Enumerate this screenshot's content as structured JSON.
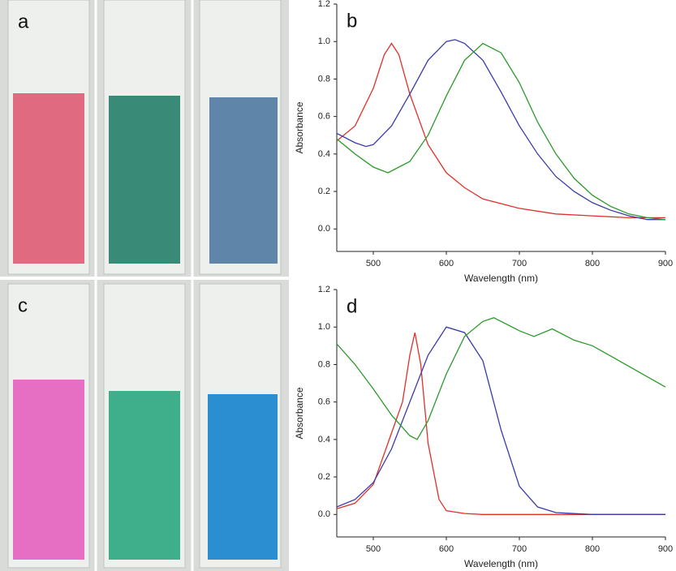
{
  "photo_panels": [
    {
      "label": "a"
    },
    {
      "label": "c"
    }
  ],
  "chart_data": [
    {
      "type": "line",
      "panel_label": "b",
      "xlabel": "Wavelength (nm)",
      "ylabel": "Absorbance",
      "xlim": [
        450,
        900
      ],
      "ylim": [
        -0.12,
        1.2
      ],
      "xticks": [
        500,
        600,
        700,
        800,
        900
      ],
      "yticks": [
        {
          "value": 0,
          "label": "0.0"
        },
        0.2,
        0.4,
        0.6,
        0.8,
        {
          "value": 1,
          "label": "1.0"
        },
        1.2
      ],
      "series": [
        {
          "color": "#e0302a",
          "x": [
            450,
            475,
            500,
            515,
            525,
            535,
            550,
            575,
            600,
            625,
            650,
            700,
            750,
            800,
            850,
            900
          ],
          "values": [
            0.47,
            0.55,
            0.75,
            0.93,
            0.99,
            0.93,
            0.72,
            0.45,
            0.3,
            0.22,
            0.16,
            0.11,
            0.08,
            0.07,
            0.06,
            0.06
          ]
        },
        {
          "color": "#3a3aa8",
          "x": [
            450,
            475,
            490,
            500,
            525,
            550,
            575,
            600,
            612,
            625,
            650,
            675,
            700,
            725,
            750,
            775,
            800,
            825,
            850,
            875,
            900
          ],
          "values": [
            0.51,
            0.46,
            0.44,
            0.45,
            0.55,
            0.72,
            0.9,
            1.0,
            1.01,
            0.99,
            0.9,
            0.73,
            0.55,
            0.4,
            0.28,
            0.2,
            0.14,
            0.1,
            0.07,
            0.05,
            0.05
          ]
        },
        {
          "color": "#2a9a2a",
          "x": [
            450,
            475,
            500,
            520,
            550,
            575,
            600,
            625,
            650,
            675,
            700,
            725,
            750,
            775,
            800,
            825,
            850,
            875,
            900
          ],
          "values": [
            0.48,
            0.4,
            0.33,
            0.3,
            0.36,
            0.5,
            0.71,
            0.9,
            0.99,
            0.94,
            0.78,
            0.57,
            0.4,
            0.27,
            0.18,
            0.12,
            0.08,
            0.06,
            0.05
          ]
        }
      ]
    },
    {
      "type": "line",
      "panel_label": "d",
      "xlabel": "Wavelength (nm)",
      "ylabel": "Absorbance",
      "xlim": [
        450,
        900
      ],
      "ylim": [
        -0.12,
        1.2
      ],
      "xticks": [
        500,
        600,
        700,
        800,
        900
      ],
      "yticks": [
        {
          "value": 0,
          "label": "0.0"
        },
        0.2,
        0.4,
        0.6,
        0.8,
        {
          "value": 1,
          "label": "1.0"
        },
        1.2
      ],
      "series": [
        {
          "color": "#e0302a",
          "x": [
            450,
            475,
            500,
            520,
            540,
            550,
            557,
            565,
            575,
            590,
            600,
            625,
            650,
            700,
            800,
            900
          ],
          "values": [
            0.03,
            0.06,
            0.16,
            0.38,
            0.6,
            0.85,
            0.97,
            0.8,
            0.38,
            0.08,
            0.02,
            0.005,
            0,
            0,
            0,
            0
          ]
        },
        {
          "color": "#3a3aa8",
          "x": [
            450,
            475,
            500,
            525,
            550,
            575,
            600,
            625,
            650,
            675,
            700,
            725,
            750,
            800,
            900
          ],
          "values": [
            0.04,
            0.08,
            0.17,
            0.35,
            0.6,
            0.85,
            1.0,
            0.97,
            0.82,
            0.45,
            0.15,
            0.04,
            0.01,
            0,
            0
          ]
        },
        {
          "color": "#2a9a2a",
          "x": [
            450,
            475,
            500,
            525,
            550,
            560,
            575,
            600,
            625,
            650,
            665,
            700,
            720,
            745,
            775,
            800,
            850,
            900
          ],
          "values": [
            0.91,
            0.8,
            0.67,
            0.53,
            0.42,
            0.4,
            0.5,
            0.75,
            0.95,
            1.03,
            1.05,
            0.98,
            0.95,
            0.99,
            0.93,
            0.9,
            0.79,
            0.68
          ]
        }
      ]
    }
  ]
}
